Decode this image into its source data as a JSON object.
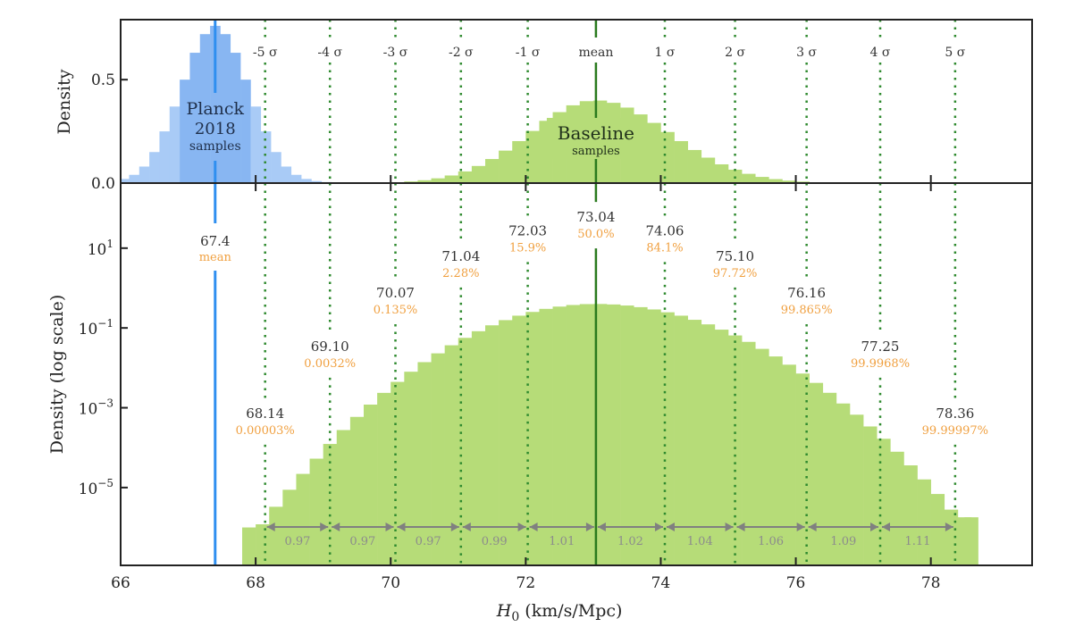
{
  "chart_data": [
    {
      "type": "bar",
      "panel": "top",
      "ylabel": "Density",
      "xlim": [
        66,
        79.5
      ],
      "ylim": [
        0,
        0.79
      ],
      "yticks": [
        "0.0",
        "0.5"
      ],
      "ytick_values": [
        0,
        0.5
      ],
      "series": [
        {
          "name": "Planck 2018 samples",
          "label_lines": [
            "Planck",
            "2018",
            "samples"
          ],
          "color": "#a9cbf6",
          "color_inner": "#88b6f2",
          "bin_width": 0.15,
          "x": [
            66.05,
            66.2,
            66.35,
            66.5,
            66.65,
            66.8,
            66.95,
            67.1,
            67.25,
            67.4,
            67.55,
            67.7,
            67.85,
            68.0,
            68.15,
            68.3,
            68.45,
            68.6,
            68.75,
            68.9,
            69.05,
            69.2
          ],
          "values": [
            0.02,
            0.04,
            0.08,
            0.15,
            0.25,
            0.37,
            0.5,
            0.63,
            0.72,
            0.76,
            0.72,
            0.63,
            0.5,
            0.37,
            0.25,
            0.15,
            0.08,
            0.04,
            0.02,
            0.01,
            0.005,
            0.002
          ]
        },
        {
          "name": "Baseline samples",
          "label_lines": [
            "Baseline",
            "samples"
          ],
          "color": "#b6dc78"
        }
      ],
      "sigma_labels": [
        "-5 σ",
        "-4 σ",
        "-3 σ",
        "-2 σ",
        "-1 σ",
        "mean",
        "1 σ",
        "2 σ",
        "3 σ",
        "4 σ",
        "5 σ"
      ]
    },
    {
      "type": "bar",
      "panel": "bottom",
      "ylabel": "Density (log scale)",
      "xlabel_italic": "H",
      "xlabel_sub": "0",
      "xlabel_rest": " (km/s/Mpc)",
      "xlim": [
        66,
        79.5
      ],
      "ylim_log10": [
        -6.95,
        2.63
      ],
      "yscale": "log",
      "yticks": [
        {
          "base": "10",
          "exp": "1",
          "v": 1
        },
        {
          "base": "10",
          "exp": "−1",
          "v": -1
        },
        {
          "base": "10",
          "exp": "−3",
          "v": -3
        },
        {
          "base": "10",
          "exp": "−5",
          "v": -5
        }
      ],
      "xticks": [
        "66",
        "68",
        "70",
        "72",
        "74",
        "76",
        "78"
      ],
      "xtick_values": [
        66,
        68,
        70,
        72,
        74,
        76,
        78
      ],
      "baseline_hist": {
        "color": "#b6dc78",
        "bin_width": 0.2,
        "x": [
          67.9,
          68.1,
          68.3,
          68.5,
          68.7,
          68.9,
          69.1,
          69.3,
          69.5,
          69.7,
          69.9,
          70.1,
          70.3,
          70.5,
          70.7,
          70.9,
          71.1,
          71.3,
          71.5,
          71.7,
          71.9,
          72.1,
          72.3,
          72.5,
          72.7,
          72.9,
          73.1,
          73.3,
          73.5,
          73.7,
          73.9,
          74.1,
          74.3,
          74.5,
          74.7,
          74.9,
          75.1,
          75.3,
          75.5,
          75.7,
          75.9,
          76.1,
          76.3,
          76.5,
          76.7,
          76.9,
          77.1,
          77.3,
          77.5,
          77.7,
          77.9,
          78.1,
          78.3,
          78.5,
          78.6
        ],
        "values": [
          1e-06,
          1.2e-06,
          3.3e-06,
          8.8e-06,
          2.2e-05,
          5.3e-05,
          0.000124,
          0.000276,
          0.00059,
          0.0012,
          0.00236,
          0.00445,
          0.008,
          0.0139,
          0.0231,
          0.0368,
          0.0564,
          0.0828,
          0.1164,
          0.157,
          0.203,
          0.252,
          0.301,
          0.343,
          0.376,
          0.396,
          0.399,
          0.388,
          0.365,
          0.332,
          0.291,
          0.247,
          0.203,
          0.16,
          0.123,
          0.0907,
          0.0649,
          0.0448,
          0.0299,
          0.0193,
          0.012,
          0.0072,
          0.0042,
          0.00237,
          0.00128,
          0.00067,
          0.00034,
          0.000167,
          7.9e-05,
          3.6e-05,
          1.6e-05,
          6.9e-06,
          2.8e-06,
          1.8e-06,
          1.8e-06
        ]
      },
      "planck_mean": {
        "x": 67.4,
        "value": "67.4",
        "label": "mean",
        "color": "#2f8ff0"
      },
      "sigma_lines": {
        "color": "#2f8a2f",
        "mean_color": "#2a7a1e",
        "x": [
          68.14,
          69.1,
          70.07,
          71.04,
          72.03,
          73.04,
          74.06,
          75.1,
          76.16,
          77.25,
          78.36
        ],
        "values": [
          "68.14",
          "69.10",
          "70.07",
          "71.04",
          "72.03",
          "73.04",
          "74.06",
          "75.10",
          "76.16",
          "77.25",
          "78.36"
        ],
        "percentiles": [
          "0.00003%",
          "0.0032%",
          "0.135%",
          "2.28%",
          "15.9%",
          "50.0%",
          "84.1%",
          "97.72%",
          "99.865%",
          "99.9968%",
          "99.99997%"
        ],
        "label_level_log10": [
          -3.3,
          -1.62,
          -0.28,
          0.64,
          1.28,
          1.62,
          1.28,
          0.64,
          -0.28,
          -1.62,
          -3.3
        ]
      },
      "interval_widths": {
        "color": "#808080",
        "values": [
          "0.97",
          "0.97",
          "0.97",
          "0.99",
          "1.01",
          "1.02",
          "1.04",
          "1.06",
          "1.09",
          "1.11"
        ]
      }
    }
  ]
}
